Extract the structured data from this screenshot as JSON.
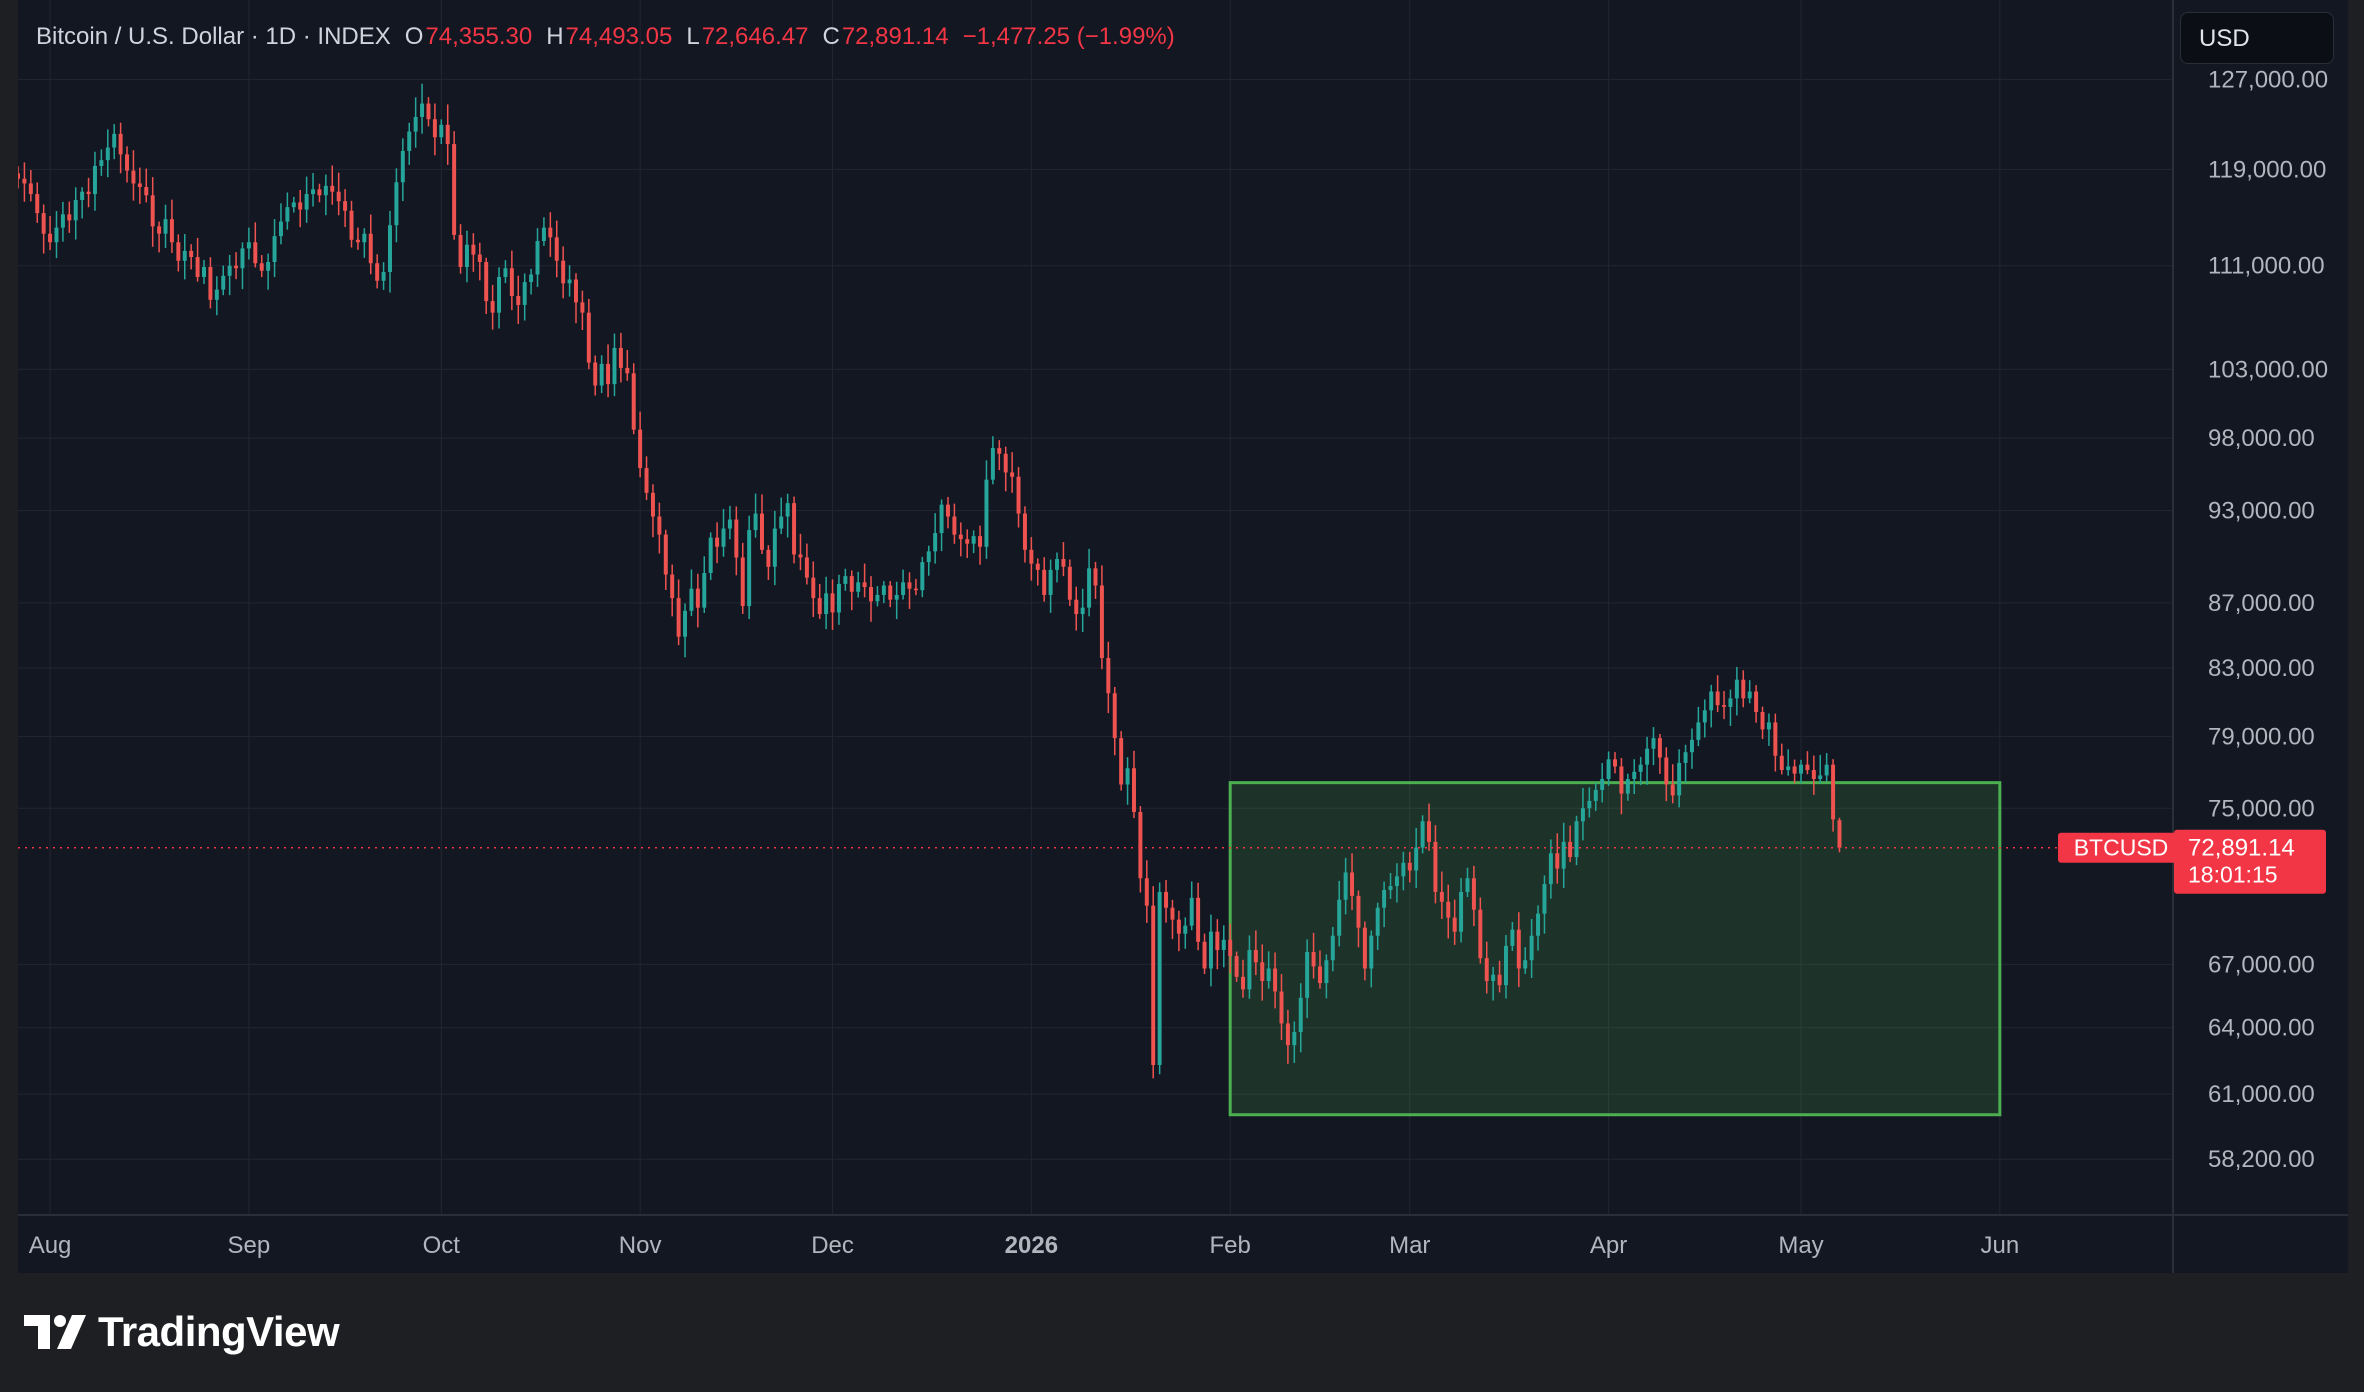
{
  "header": {
    "symbol": "Bitcoin / U.S. Dollar · 1D · INDEX",
    "o_label": "O",
    "o_value": "74,355.30",
    "h_label": "H",
    "h_value": "74,493.05",
    "l_label": "L",
    "l_value": "72,646.47",
    "c_label": "C",
    "c_value": "72,891.14",
    "change": "−1,477.25 (−1.99%)"
  },
  "currency_button": "USD",
  "brand": "TradingView",
  "colors": {
    "background": "#131722",
    "grid": "#232632",
    "up": "#26a69a",
    "down": "#ef5350",
    "box_border": "#4caf50",
    "box_fill": "#4caf50",
    "last_price": "#f23645"
  },
  "chart_data": {
    "type": "candlestick",
    "symbol": "BTCUSD",
    "interval": "1D",
    "x_range": [
      "2025-07-27",
      "2026-06-28"
    ],
    "y_scale": "log",
    "y_range": [
      55900,
      134500
    ],
    "y_ticks": [
      58200,
      61000,
      64000,
      67000,
      75000,
      79000,
      83000,
      87000,
      93000,
      98000,
      103000,
      111000,
      119000,
      127000
    ],
    "y_tick_labels": [
      "58,200.00",
      "61,000.00",
      "64,000.00",
      "67,000.00",
      "75,000.00",
      "79,000.00",
      "83,000.00",
      "87,000.00",
      "93,000.00",
      "98,000.00",
      "103,000.00",
      "111,000.00",
      "119,000.00",
      "127,000.00"
    ],
    "x_ticks": [
      {
        "date": "2025-08-01",
        "label": "Aug",
        "bold": false
      },
      {
        "date": "2025-09-01",
        "label": "Sep",
        "bold": false
      },
      {
        "date": "2025-10-01",
        "label": "Oct",
        "bold": false
      },
      {
        "date": "2025-11-01",
        "label": "Nov",
        "bold": false
      },
      {
        "date": "2025-12-01",
        "label": "Dec",
        "bold": false
      },
      {
        "date": "2026-01-01",
        "label": "2026",
        "bold": true
      },
      {
        "date": "2026-02-01",
        "label": "Feb",
        "bold": false
      },
      {
        "date": "2026-03-01",
        "label": "Mar",
        "bold": false
      },
      {
        "date": "2026-04-01",
        "label": "Apr",
        "bold": false
      },
      {
        "date": "2026-05-01",
        "label": "May",
        "bold": false
      },
      {
        "date": "2026-06-01",
        "label": "Jun",
        "bold": false
      }
    ],
    "start_date": "2025-07-27",
    "closes": [
      118200,
      117800,
      116900,
      115300,
      113600,
      112900,
      114100,
      115200,
      114700,
      116400,
      117100,
      116900,
      119300,
      119800,
      120900,
      122100,
      120300,
      118900,
      117800,
      117500,
      116800,
      114200,
      113600,
      114800,
      112900,
      111400,
      112200,
      111700,
      110100,
      110900,
      108300,
      109100,
      110200,
      111000,
      110800,
      112400,
      112900,
      111200,
      110600,
      111300,
      113400,
      114600,
      115800,
      116200,
      115600,
      116900,
      117300,
      116800,
      117600,
      117100,
      116300,
      115500,
      113100,
      112900,
      113600,
      111200,
      109800,
      110500,
      114300,
      117900,
      120600,
      122300,
      123600,
      124800,
      123400,
      121800,
      122900,
      121200,
      113500,
      110900,
      112700,
      111900,
      111300,
      108200,
      107300,
      110100,
      110800,
      108600,
      107900,
      109700,
      110300,
      113000,
      114100,
      113300,
      111400,
      109600,
      109900,
      108100,
      107300,
      103500,
      101800,
      103400,
      101900,
      104600,
      103100,
      102700,
      98600,
      95900,
      94200,
      92600,
      91400,
      88800,
      87300,
      84900,
      86500,
      87900,
      86700,
      88900,
      91200,
      90600,
      91800,
      92400,
      89900,
      86800,
      91700,
      92800,
      90400,
      89300,
      91800,
      92600,
      93500,
      90100,
      89900,
      88600,
      87300,
      86300,
      87600,
      86400,
      88200,
      88700,
      87700,
      88300,
      88000,
      87100,
      87500,
      88100,
      87200,
      87500,
      88300,
      87900,
      87800,
      89600,
      90300,
      91500,
      93400,
      92600,
      91400,
      91100,
      90800,
      91300,
      90600,
      95100,
      97300,
      96900,
      95600,
      95300,
      92800,
      90400,
      89500,
      89100,
      87500,
      89100,
      89800,
      89300,
      87200,
      86300,
      86700,
      89200,
      88100,
      83600,
      81500,
      78900,
      76300,
      77200,
      74800,
      71300,
      69900,
      62300,
      70600,
      69800,
      69200,
      68500,
      68900,
      70300,
      68100,
      66800,
      68600,
      67700,
      68200,
      67400,
      66400,
      65800,
      67700,
      67100,
      66200,
      66800,
      65700,
      64200,
      63200,
      63800,
      65400,
      67600,
      66900,
      66100,
      67200,
      68400,
      70200,
      71600,
      70400,
      68800,
      66800,
      68400,
      69800,
      70700,
      70900,
      71400,
      72100,
      71700,
      72900,
      74300,
      73200,
      70600,
      70100,
      69300,
      68600,
      70600,
      71300,
      69700,
      67300,
      66200,
      66500,
      66000,
      67900,
      68700,
      66800,
      67200,
      68400,
      69500,
      71000,
      72600,
      71800,
      73200,
      72400,
      74300,
      75000,
      75400,
      76000,
      76600,
      77700,
      77300,
      75800,
      76600,
      77000,
      77400,
      78300,
      78900,
      77800,
      76300,
      75700,
      77500,
      78100,
      78800,
      79800,
      80500,
      81600,
      80800,
      80700,
      81200,
      82300,
      81200,
      81600,
      80400,
      79400,
      79800,
      77900,
      77100,
      77300,
      76900,
      77400,
      77100,
      76600,
      76800,
      77400,
      74400,
      72891.14
    ],
    "last_ohlc": {
      "open": 74355.3,
      "high": 74493.05,
      "low": 72646.47,
      "close": 72891.14
    },
    "last_change": -1477.25,
    "last_change_pct": -1.99,
    "annotation_box": {
      "from": "2026-02-01",
      "to": "2026-06-01",
      "top": 76400,
      "bottom": 60100
    },
    "last_price_label": {
      "symbol": "BTCUSD",
      "price": "72,891.14",
      "countdown": "18:01:15"
    }
  }
}
